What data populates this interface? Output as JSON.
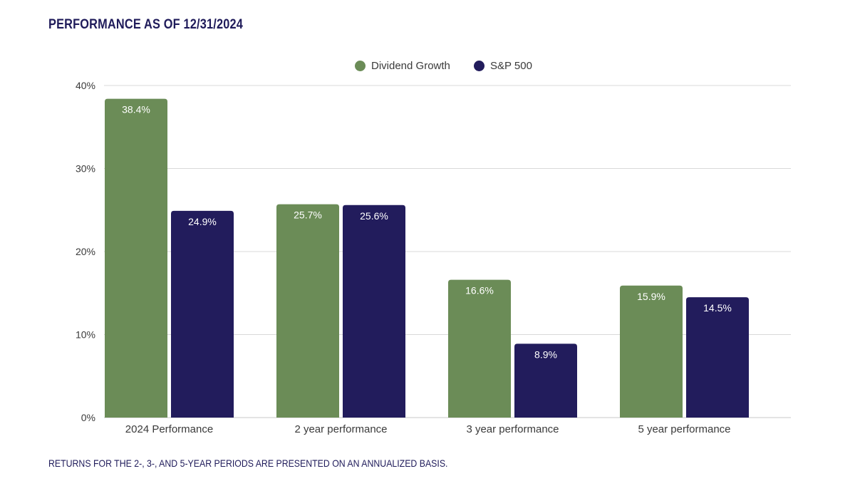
{
  "header": {
    "title": "PERFORMANCE AS OF 12/31/2024"
  },
  "footer": {
    "note": "RETURNS FOR THE 2-, 3-, AND 5-YEAR PERIODS ARE PRESENTED ON AN ANNUALIZED BASIS."
  },
  "chart_data": {
    "type": "bar",
    "title": "PERFORMANCE AS OF 12/31/2024",
    "xlabel": "",
    "ylabel": "",
    "categories": [
      "2024 Performance",
      "2 year performance",
      "3 year performance",
      "5 year performance"
    ],
    "series": [
      {
        "name": "Dividend Growth",
        "color": "#6b8c57",
        "values": [
          38.4,
          25.7,
          16.6,
          15.9
        ],
        "labels": [
          "38.4%",
          "25.7%",
          "16.6%",
          "15.9%"
        ]
      },
      {
        "name": "S&P 500",
        "color": "#221c5c",
        "values": [
          24.9,
          25.6,
          8.9,
          14.5
        ],
        "labels": [
          "24.9%",
          "25.6%",
          "8.9%",
          "14.5%"
        ]
      }
    ],
    "ylim": [
      0,
      40
    ],
    "yticks": [
      0,
      10,
      20,
      30,
      40
    ],
    "ytick_labels": [
      "0%",
      "10%",
      "20%",
      "30%",
      "40%"
    ],
    "grid": true,
    "legend": "top-center"
  }
}
